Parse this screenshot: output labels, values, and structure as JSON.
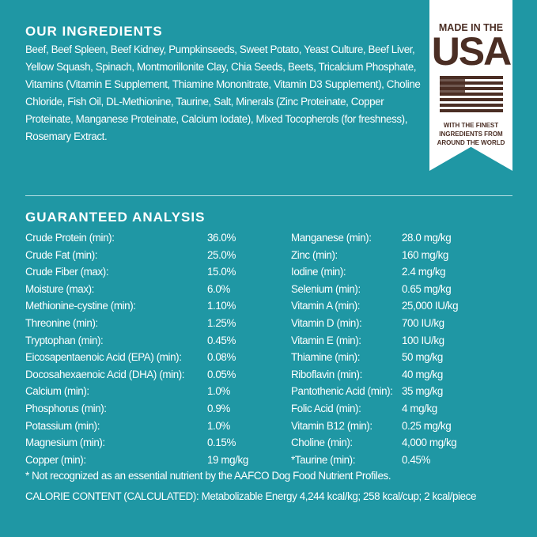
{
  "ingredients": {
    "title": "OUR INGREDIENTS",
    "text": "Beef, Beef Spleen, Beef Kidney, Pumpkinseeds, Sweet Potato, Yeast Culture, Beef Liver, Yellow Squash, Spinach, Montmorillonite Clay, Chia Seeds, Beets, Tricalcium Phosphate, Vitamins (Vitamin E Supplement, Thiamine Mononitrate, Vitamin D3 Supplement), Choline Chloride, Fish Oil, DL-Methionine, Taurine, Salt, Minerals (Zinc Proteinate, Copper Proteinate, Manganese Proteinate, Calcium Iodate), Mixed Tocopherols (for freshness), Rosemary Extract."
  },
  "badge": {
    "line1": "MADE IN THE",
    "line2": "USA",
    "line3": "WITH THE FINEST INGREDIENTS FROM AROUND THE WORLD",
    "colors": {
      "ink": "#4b2e24",
      "background": "#ffffff"
    }
  },
  "analysis": {
    "title": "GUARANTEED ANALYSIS",
    "left": [
      [
        "Crude Protein (min):",
        "36.0%"
      ],
      [
        "Crude Fat (min):",
        "25.0%"
      ],
      [
        "Crude Fiber (max):",
        "15.0%"
      ],
      [
        "Moisture (max):",
        "6.0%"
      ],
      [
        "Methionine-cystine (min):",
        "1.10%"
      ],
      [
        "Threonine (min):",
        "1.25%"
      ],
      [
        "Tryptophan (min):",
        "0.45%"
      ],
      [
        "Eicosapentaenoic Acid (EPA) (min):",
        "0.08%"
      ],
      [
        "Docosahexaenoic Acid (DHA) (min):",
        "0.05%"
      ],
      [
        "Calcium (min):",
        "1.0%"
      ],
      [
        "Phosphorus (min):",
        "0.9%"
      ],
      [
        "Potassium (min):",
        "1.0%"
      ],
      [
        "Magnesium (min):",
        "0.15%"
      ],
      [
        "Copper (min):",
        "19 mg/kg"
      ]
    ],
    "right": [
      [
        "Manganese (min):",
        "28.0 mg/kg"
      ],
      [
        "Zinc (min):",
        "160 mg/kg"
      ],
      [
        "Iodine (min):",
        "2.4 mg/kg"
      ],
      [
        "Selenium  (min):",
        "0.65 mg/kg"
      ],
      [
        "Vitamin A (min):",
        "25,000 IU/kg"
      ],
      [
        "Vitamin D (min):",
        "700 IU/kg"
      ],
      [
        "Vitamin E (min):",
        "100 IU/kg"
      ],
      [
        "Thiamine (min):",
        "50 mg/kg"
      ],
      [
        "Riboflavin (min):",
        "40 mg/kg"
      ],
      [
        "Pantothenic Acid (min):",
        "35 mg/kg"
      ],
      [
        "Folic Acid (min):",
        "4 mg/kg"
      ],
      [
        "Vitamin B12 (min):",
        "0.25 mg/kg"
      ],
      [
        "Choline (min):",
        "4,000 mg/kg"
      ],
      [
        "*Taurine (min):",
        "0.45%"
      ]
    ]
  },
  "footnote": "* Not recognized as an essential nutrient by the AAFCO Dog Food Nutrient Profiles.",
  "calorie": "CALORIE CONTENT (CALCULATED): Metabolizable Energy 4,244 kcal/kg; 258 kcal/cup; 2 kcal/piece",
  "colors": {
    "background": "#1f97a4",
    "text": "#ffffff"
  }
}
